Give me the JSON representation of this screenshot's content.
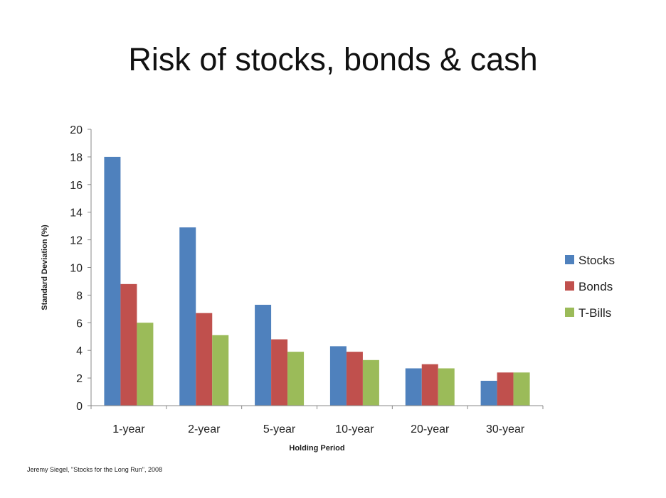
{
  "title": "Risk of stocks, bonds & cash",
  "source": "Jeremy Siegel, \"Stocks for the Long Run\", 2008",
  "chart_data": {
    "type": "bar",
    "xlabel": "Holding Period",
    "ylabel": "Standard Deviation (%)",
    "ylim": [
      0,
      20
    ],
    "yticks": [
      0,
      2,
      4,
      6,
      8,
      10,
      12,
      14,
      16,
      18,
      20
    ],
    "categories": [
      "1-year",
      "2-year",
      "5-year",
      "10-year",
      "20-year",
      "30-year"
    ],
    "series": [
      {
        "name": "Stocks",
        "color": "#4f81bd",
        "values": [
          18.0,
          12.9,
          7.3,
          4.3,
          2.7,
          1.8
        ]
      },
      {
        "name": "Bonds",
        "color": "#c0504d",
        "values": [
          8.8,
          6.7,
          4.8,
          3.9,
          3.0,
          2.4
        ]
      },
      {
        "name": "T-Bills",
        "color": "#9bbb59",
        "values": [
          6.0,
          5.1,
          3.9,
          3.3,
          2.7,
          2.4
        ]
      }
    ],
    "legend_position": "right",
    "grid": false
  }
}
